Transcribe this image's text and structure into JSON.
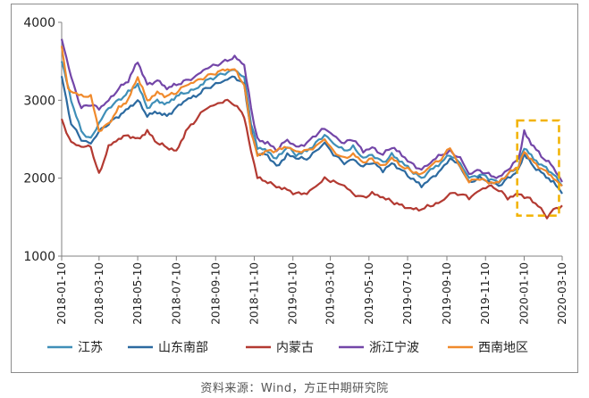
{
  "source_note": "资料来源：Wind，方正中期研究院",
  "chart_data": {
    "type": "line",
    "title": "",
    "xlabel": "",
    "ylabel": "",
    "ylim": [
      1000,
      4000
    ],
    "yticks": [
      "1000",
      "2000",
      "3000",
      "4000"
    ],
    "x_tick_labels": [
      "2018-01-10",
      "2018-03-10",
      "2018-05-10",
      "2018-07-10",
      "2018-09-10",
      "2018-11-10",
      "2019-01-10",
      "2019-03-10",
      "2019-05-10",
      "2019-07-10",
      "2019-09-10",
      "2019-11-10",
      "2020-01-10",
      "2020-03-10"
    ],
    "grid": false,
    "legend_position": "bottom",
    "highlight_box": {
      "x_range": [
        "2019-12-30",
        "2020-03-05"
      ],
      "y_range": [
        1520,
        2740
      ],
      "color": "#f2b200",
      "style": "dashed"
    },
    "series": [
      {
        "name": "江苏",
        "color": "#3f8fb8",
        "points": [
          [
            "2018-01-10",
            3500
          ],
          [
            "2018-01-25",
            3000
          ],
          [
            "2018-02-10",
            2600
          ],
          [
            "2018-02-25",
            2500
          ],
          [
            "2018-03-10",
            2700
          ],
          [
            "2018-03-25",
            2900
          ],
          [
            "2018-04-10",
            3000
          ],
          [
            "2018-04-25",
            3100
          ],
          [
            "2018-05-10",
            3200
          ],
          [
            "2018-05-25",
            2900
          ],
          [
            "2018-06-10",
            3000
          ],
          [
            "2018-06-25",
            2950
          ],
          [
            "2018-07-10",
            3050
          ],
          [
            "2018-07-25",
            3100
          ],
          [
            "2018-08-10",
            3150
          ],
          [
            "2018-08-25",
            3250
          ],
          [
            "2018-09-10",
            3300
          ],
          [
            "2018-09-25",
            3350
          ],
          [
            "2018-10-10",
            3400
          ],
          [
            "2018-10-25",
            3300
          ],
          [
            "2018-11-05",
            2700
          ],
          [
            "2018-11-15",
            2400
          ],
          [
            "2018-12-01",
            2350
          ],
          [
            "2018-12-15",
            2250
          ],
          [
            "2019-01-01",
            2400
          ],
          [
            "2019-01-15",
            2300
          ],
          [
            "2019-02-01",
            2350
          ],
          [
            "2019-02-15",
            2450
          ],
          [
            "2019-03-01",
            2550
          ],
          [
            "2019-03-15",
            2450
          ],
          [
            "2019-04-01",
            2350
          ],
          [
            "2019-04-15",
            2400
          ],
          [
            "2019-05-01",
            2250
          ],
          [
            "2019-05-15",
            2300
          ],
          [
            "2019-06-01",
            2200
          ],
          [
            "2019-06-15",
            2300
          ],
          [
            "2019-07-01",
            2200
          ],
          [
            "2019-07-15",
            2100
          ],
          [
            "2019-08-01",
            2000
          ],
          [
            "2019-08-15",
            2100
          ],
          [
            "2019-09-01",
            2200
          ],
          [
            "2019-09-15",
            2300
          ],
          [
            "2019-10-01",
            2200
          ],
          [
            "2019-10-15",
            2000
          ],
          [
            "2019-11-01",
            2050
          ],
          [
            "2019-11-15",
            2000
          ],
          [
            "2019-12-01",
            1950
          ],
          [
            "2019-12-15",
            2050
          ],
          [
            "2020-01-01",
            2150
          ],
          [
            "2020-01-10",
            2400
          ],
          [
            "2020-01-25",
            2250
          ],
          [
            "2020-02-10",
            2150
          ],
          [
            "2020-02-25",
            2050
          ],
          [
            "2020-03-10",
            1900
          ]
        ]
      },
      {
        "name": "山东南部",
        "color": "#2c6aa0",
        "points": [
          [
            "2018-01-10",
            3300
          ],
          [
            "2018-01-25",
            2700
          ],
          [
            "2018-02-10",
            2500
          ],
          [
            "2018-02-25",
            2450
          ],
          [
            "2018-03-10",
            2600
          ],
          [
            "2018-03-25",
            2700
          ],
          [
            "2018-04-10",
            2800
          ],
          [
            "2018-04-25",
            2900
          ],
          [
            "2018-05-10",
            3000
          ],
          [
            "2018-05-25",
            2800
          ],
          [
            "2018-06-10",
            2850
          ],
          [
            "2018-06-25",
            2800
          ],
          [
            "2018-07-10",
            2900
          ],
          [
            "2018-07-25",
            3000
          ],
          [
            "2018-08-10",
            3050
          ],
          [
            "2018-08-25",
            3150
          ],
          [
            "2018-09-10",
            3200
          ],
          [
            "2018-09-25",
            3250
          ],
          [
            "2018-10-10",
            3300
          ],
          [
            "2018-10-25",
            3200
          ],
          [
            "2018-11-05",
            2600
          ],
          [
            "2018-11-15",
            2300
          ],
          [
            "2018-12-01",
            2300
          ],
          [
            "2018-12-15",
            2150
          ],
          [
            "2019-01-01",
            2300
          ],
          [
            "2019-01-15",
            2250
          ],
          [
            "2019-02-01",
            2250
          ],
          [
            "2019-02-15",
            2350
          ],
          [
            "2019-03-01",
            2450
          ],
          [
            "2019-03-15",
            2300
          ],
          [
            "2019-04-01",
            2200
          ],
          [
            "2019-04-15",
            2250
          ],
          [
            "2019-05-01",
            2150
          ],
          [
            "2019-05-15",
            2200
          ],
          [
            "2019-06-01",
            2100
          ],
          [
            "2019-06-15",
            2200
          ],
          [
            "2019-07-01",
            2100
          ],
          [
            "2019-07-15",
            2000
          ],
          [
            "2019-08-01",
            1900
          ],
          [
            "2019-08-15",
            2000
          ],
          [
            "2019-09-01",
            2100
          ],
          [
            "2019-09-15",
            2250
          ],
          [
            "2019-10-01",
            2150
          ],
          [
            "2019-10-15",
            1950
          ],
          [
            "2019-11-01",
            2000
          ],
          [
            "2019-11-15",
            1950
          ],
          [
            "2019-12-01",
            1900
          ],
          [
            "2019-12-15",
            2000
          ],
          [
            "2020-01-01",
            2100
          ],
          [
            "2020-01-10",
            2300
          ],
          [
            "2020-01-25",
            2150
          ],
          [
            "2020-02-10",
            2050
          ],
          [
            "2020-02-25",
            1950
          ],
          [
            "2020-03-10",
            1800
          ]
        ]
      },
      {
        "name": "内蒙古",
        "color": "#b33a32",
        "points": [
          [
            "2018-01-10",
            2750
          ],
          [
            "2018-01-25",
            2450
          ],
          [
            "2018-02-10",
            2400
          ],
          [
            "2018-02-25",
            2400
          ],
          [
            "2018-03-10",
            2050
          ],
          [
            "2018-03-25",
            2400
          ],
          [
            "2018-04-10",
            2500
          ],
          [
            "2018-04-25",
            2550
          ],
          [
            "2018-05-10",
            2500
          ],
          [
            "2018-05-25",
            2600
          ],
          [
            "2018-06-10",
            2450
          ],
          [
            "2018-06-25",
            2400
          ],
          [
            "2018-07-10",
            2350
          ],
          [
            "2018-07-25",
            2600
          ],
          [
            "2018-08-10",
            2750
          ],
          [
            "2018-08-25",
            2900
          ],
          [
            "2018-09-10",
            2950
          ],
          [
            "2018-09-25",
            3000
          ],
          [
            "2018-10-10",
            2950
          ],
          [
            "2018-10-25",
            2800
          ],
          [
            "2018-11-05",
            2350
          ],
          [
            "2018-11-15",
            2000
          ],
          [
            "2018-12-01",
            1950
          ],
          [
            "2018-12-15",
            1900
          ],
          [
            "2019-01-01",
            1850
          ],
          [
            "2019-01-15",
            1800
          ],
          [
            "2019-02-01",
            1800
          ],
          [
            "2019-02-15",
            1900
          ],
          [
            "2019-03-01",
            2000
          ],
          [
            "2019-03-15",
            1950
          ],
          [
            "2019-04-01",
            1900
          ],
          [
            "2019-04-15",
            1800
          ],
          [
            "2019-05-01",
            1750
          ],
          [
            "2019-05-15",
            1800
          ],
          [
            "2019-06-01",
            1750
          ],
          [
            "2019-06-15",
            1700
          ],
          [
            "2019-07-01",
            1650
          ],
          [
            "2019-07-15",
            1600
          ],
          [
            "2019-08-01",
            1600
          ],
          [
            "2019-08-15",
            1650
          ],
          [
            "2019-09-01",
            1700
          ],
          [
            "2019-09-15",
            1800
          ],
          [
            "2019-10-01",
            1800
          ],
          [
            "2019-10-15",
            1750
          ],
          [
            "2019-11-01",
            1850
          ],
          [
            "2019-11-15",
            1900
          ],
          [
            "2019-12-01",
            1850
          ],
          [
            "2019-12-15",
            1750
          ],
          [
            "2020-01-01",
            1800
          ],
          [
            "2020-01-15",
            1750
          ],
          [
            "2020-02-01",
            1650
          ],
          [
            "2020-02-15",
            1500
          ],
          [
            "2020-02-25",
            1600
          ],
          [
            "2020-03-10",
            1650
          ]
        ]
      },
      {
        "name": "浙江宁波",
        "color": "#7346a8",
        "points": [
          [
            "2018-01-10",
            3800
          ],
          [
            "2018-01-25",
            3300
          ],
          [
            "2018-02-10",
            2900
          ],
          [
            "2018-02-25",
            2950
          ],
          [
            "2018-03-10",
            2900
          ],
          [
            "2018-03-25",
            3000
          ],
          [
            "2018-04-10",
            3150
          ],
          [
            "2018-04-25",
            3250
          ],
          [
            "2018-05-10",
            3500
          ],
          [
            "2018-05-25",
            3200
          ],
          [
            "2018-06-10",
            3250
          ],
          [
            "2018-06-25",
            3150
          ],
          [
            "2018-07-10",
            3200
          ],
          [
            "2018-07-25",
            3250
          ],
          [
            "2018-08-10",
            3300
          ],
          [
            "2018-08-25",
            3400
          ],
          [
            "2018-09-10",
            3450
          ],
          [
            "2018-09-25",
            3500
          ],
          [
            "2018-10-10",
            3550
          ],
          [
            "2018-10-25",
            3450
          ],
          [
            "2018-11-05",
            2900
          ],
          [
            "2018-11-15",
            2500
          ],
          [
            "2018-12-01",
            2450
          ],
          [
            "2018-12-15",
            2350
          ],
          [
            "2019-01-01",
            2500
          ],
          [
            "2019-01-15",
            2400
          ],
          [
            "2019-02-01",
            2450
          ],
          [
            "2019-02-15",
            2550
          ],
          [
            "2019-03-01",
            2650
          ],
          [
            "2019-03-15",
            2550
          ],
          [
            "2019-04-01",
            2450
          ],
          [
            "2019-04-15",
            2500
          ],
          [
            "2019-05-01",
            2350
          ],
          [
            "2019-05-15",
            2400
          ],
          [
            "2019-06-01",
            2300
          ],
          [
            "2019-06-15",
            2400
          ],
          [
            "2019-07-01",
            2300
          ],
          [
            "2019-07-15",
            2200
          ],
          [
            "2019-08-01",
            2100
          ],
          [
            "2019-08-15",
            2200
          ],
          [
            "2019-09-01",
            2300
          ],
          [
            "2019-09-15",
            2350
          ],
          [
            "2019-10-01",
            2250
          ],
          [
            "2019-10-15",
            2050
          ],
          [
            "2019-11-01",
            2100
          ],
          [
            "2019-11-15",
            2050
          ],
          [
            "2019-12-01",
            2000
          ],
          [
            "2019-12-15",
            2100
          ],
          [
            "2020-01-01",
            2250
          ],
          [
            "2020-01-10",
            2600
          ],
          [
            "2020-01-25",
            2400
          ],
          [
            "2020-02-10",
            2250
          ],
          [
            "2020-02-25",
            2150
          ],
          [
            "2020-03-10",
            1950
          ]
        ]
      },
      {
        "name": "西南地区",
        "color": "#f08a2c",
        "points": [
          [
            "2018-01-10",
            3700
          ],
          [
            "2018-01-20",
            3150
          ],
          [
            "2018-02-10",
            3050
          ],
          [
            "2018-02-25",
            3050
          ],
          [
            "2018-03-10",
            2600
          ],
          [
            "2018-03-25",
            2700
          ],
          [
            "2018-04-10",
            2900
          ],
          [
            "2018-04-25",
            3000
          ],
          [
            "2018-05-10",
            3300
          ],
          [
            "2018-05-25",
            3000
          ],
          [
            "2018-06-10",
            3100
          ],
          [
            "2018-06-25",
            3050
          ],
          [
            "2018-07-10",
            3100
          ],
          [
            "2018-07-25",
            3200
          ],
          [
            "2018-08-10",
            3250
          ],
          [
            "2018-08-25",
            3300
          ],
          [
            "2018-09-10",
            3350
          ],
          [
            "2018-09-25",
            3400
          ],
          [
            "2018-10-10",
            3400
          ],
          [
            "2018-10-25",
            3200
          ],
          [
            "2018-11-05",
            2600
          ],
          [
            "2018-11-15",
            2300
          ],
          [
            "2018-12-01",
            2350
          ],
          [
            "2018-12-15",
            2350
          ],
          [
            "2019-01-01",
            2400
          ],
          [
            "2019-01-15",
            2350
          ],
          [
            "2019-02-01",
            2350
          ],
          [
            "2019-02-15",
            2400
          ],
          [
            "2019-03-01",
            2500
          ],
          [
            "2019-03-15",
            2350
          ],
          [
            "2019-04-01",
            2250
          ],
          [
            "2019-04-15",
            2300
          ],
          [
            "2019-05-01",
            2200
          ],
          [
            "2019-05-15",
            2250
          ],
          [
            "2019-06-01",
            2150
          ],
          [
            "2019-06-15",
            2250
          ],
          [
            "2019-07-01",
            2150
          ],
          [
            "2019-07-15",
            2100
          ],
          [
            "2019-08-01",
            2050
          ],
          [
            "2019-08-15",
            2150
          ],
          [
            "2019-09-01",
            2250
          ],
          [
            "2019-09-15",
            2400
          ],
          [
            "2019-10-01",
            2150
          ],
          [
            "2019-10-15",
            1950
          ],
          [
            "2019-11-01",
            2000
          ],
          [
            "2019-11-15",
            1950
          ],
          [
            "2019-12-01",
            1950
          ],
          [
            "2019-12-15",
            2050
          ],
          [
            "2020-01-01",
            2150
          ],
          [
            "2020-01-10",
            2350
          ],
          [
            "2020-01-25",
            2200
          ],
          [
            "2020-02-10",
            2100
          ],
          [
            "2020-02-25",
            2000
          ],
          [
            "2020-03-10",
            1900
          ]
        ]
      }
    ]
  }
}
